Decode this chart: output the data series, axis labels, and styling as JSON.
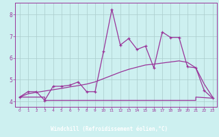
{
  "xlabel": "Windchill (Refroidissement éolien,°C)",
  "bg_color": "#cdf0f0",
  "plot_bg_color": "#cdf0f0",
  "line_color": "#993399",
  "grid_color": "#aacccc",
  "axis_bar_color": "#660066",
  "xlim": [
    -0.5,
    23.5
  ],
  "ylim": [
    3.75,
    8.55
  ],
  "xticks": [
    0,
    1,
    2,
    3,
    4,
    5,
    6,
    7,
    8,
    9,
    10,
    11,
    12,
    13,
    14,
    15,
    16,
    17,
    18,
    19,
    20,
    21,
    22,
    23
  ],
  "yticks": [
    4,
    5,
    6,
    7,
    8
  ],
  "line_jagged_x": [
    0,
    1,
    2,
    3,
    4,
    5,
    6,
    7,
    8,
    9,
    10,
    11,
    12,
    13,
    14,
    15,
    16,
    17,
    18,
    19,
    20,
    21,
    22,
    23
  ],
  "line_jagged_y": [
    4.2,
    4.45,
    4.45,
    4.05,
    4.7,
    4.7,
    4.75,
    4.9,
    4.45,
    4.45,
    6.3,
    8.25,
    6.6,
    6.9,
    6.4,
    6.55,
    5.55,
    7.2,
    6.95,
    6.95,
    5.6,
    5.55,
    4.5,
    4.15
  ],
  "line_smooth_x": [
    0,
    1,
    2,
    3,
    4,
    5,
    6,
    7,
    8,
    9,
    10,
    11,
    12,
    13,
    14,
    15,
    16,
    17,
    18,
    19,
    20,
    21,
    22,
    23
  ],
  "line_smooth_y": [
    4.2,
    4.35,
    4.42,
    4.48,
    4.54,
    4.6,
    4.67,
    4.73,
    4.8,
    4.9,
    5.05,
    5.2,
    5.35,
    5.48,
    5.58,
    5.68,
    5.72,
    5.77,
    5.82,
    5.87,
    5.8,
    5.55,
    4.8,
    4.2
  ],
  "line_flat_x": [
    0,
    3,
    3,
    15,
    15,
    21,
    21,
    23
  ],
  "line_flat_y": [
    4.2,
    4.2,
    4.05,
    4.05,
    4.05,
    4.05,
    4.2,
    4.15
  ]
}
